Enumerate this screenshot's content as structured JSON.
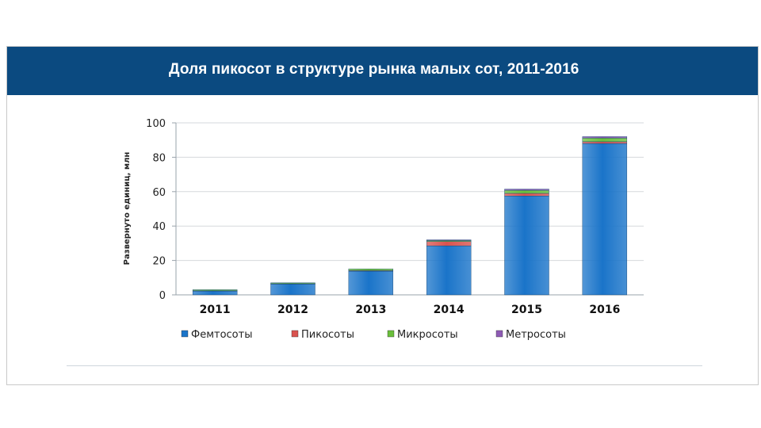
{
  "header": {
    "title": "Доля пикосот в структуре рынка малых сот, 2011-2016"
  },
  "colors": {
    "header_bg": "#0b4a80",
    "femto": "#1a74c9",
    "pico": "#d9534f",
    "micro": "#6abf3b",
    "metro": "#8e5bb5"
  },
  "chart_data": {
    "type": "bar",
    "stacked": true,
    "title": "",
    "xlabel": "",
    "ylabel": "Развернуто единиц, млн",
    "ylim": [
      0,
      100
    ],
    "yticks": [
      0,
      20,
      40,
      60,
      80,
      100
    ],
    "grid": true,
    "legend_position": "bottom",
    "categories": [
      "2011",
      "2012",
      "2013",
      "2014",
      "2015",
      "2016"
    ],
    "series": [
      {
        "name": "Фемтосоты",
        "color": "#1a74c9",
        "values": [
          2.3,
          6.3,
          13.8,
          28.5,
          57.5,
          88.0
        ]
      },
      {
        "name": "Пикосоты",
        "color": "#d9534f",
        "values": [
          0.1,
          0.2,
          0.3,
          2.5,
          1.5,
          1.0
        ]
      },
      {
        "name": "Микросоты",
        "color": "#6abf3b",
        "values": [
          0.6,
          0.5,
          1.0,
          0.6,
          1.8,
          2.2
        ]
      },
      {
        "name": "Метросоты",
        "color": "#8e5bb5",
        "values": [
          0.0,
          0.0,
          0.0,
          0.4,
          0.7,
          0.8
        ]
      }
    ]
  }
}
